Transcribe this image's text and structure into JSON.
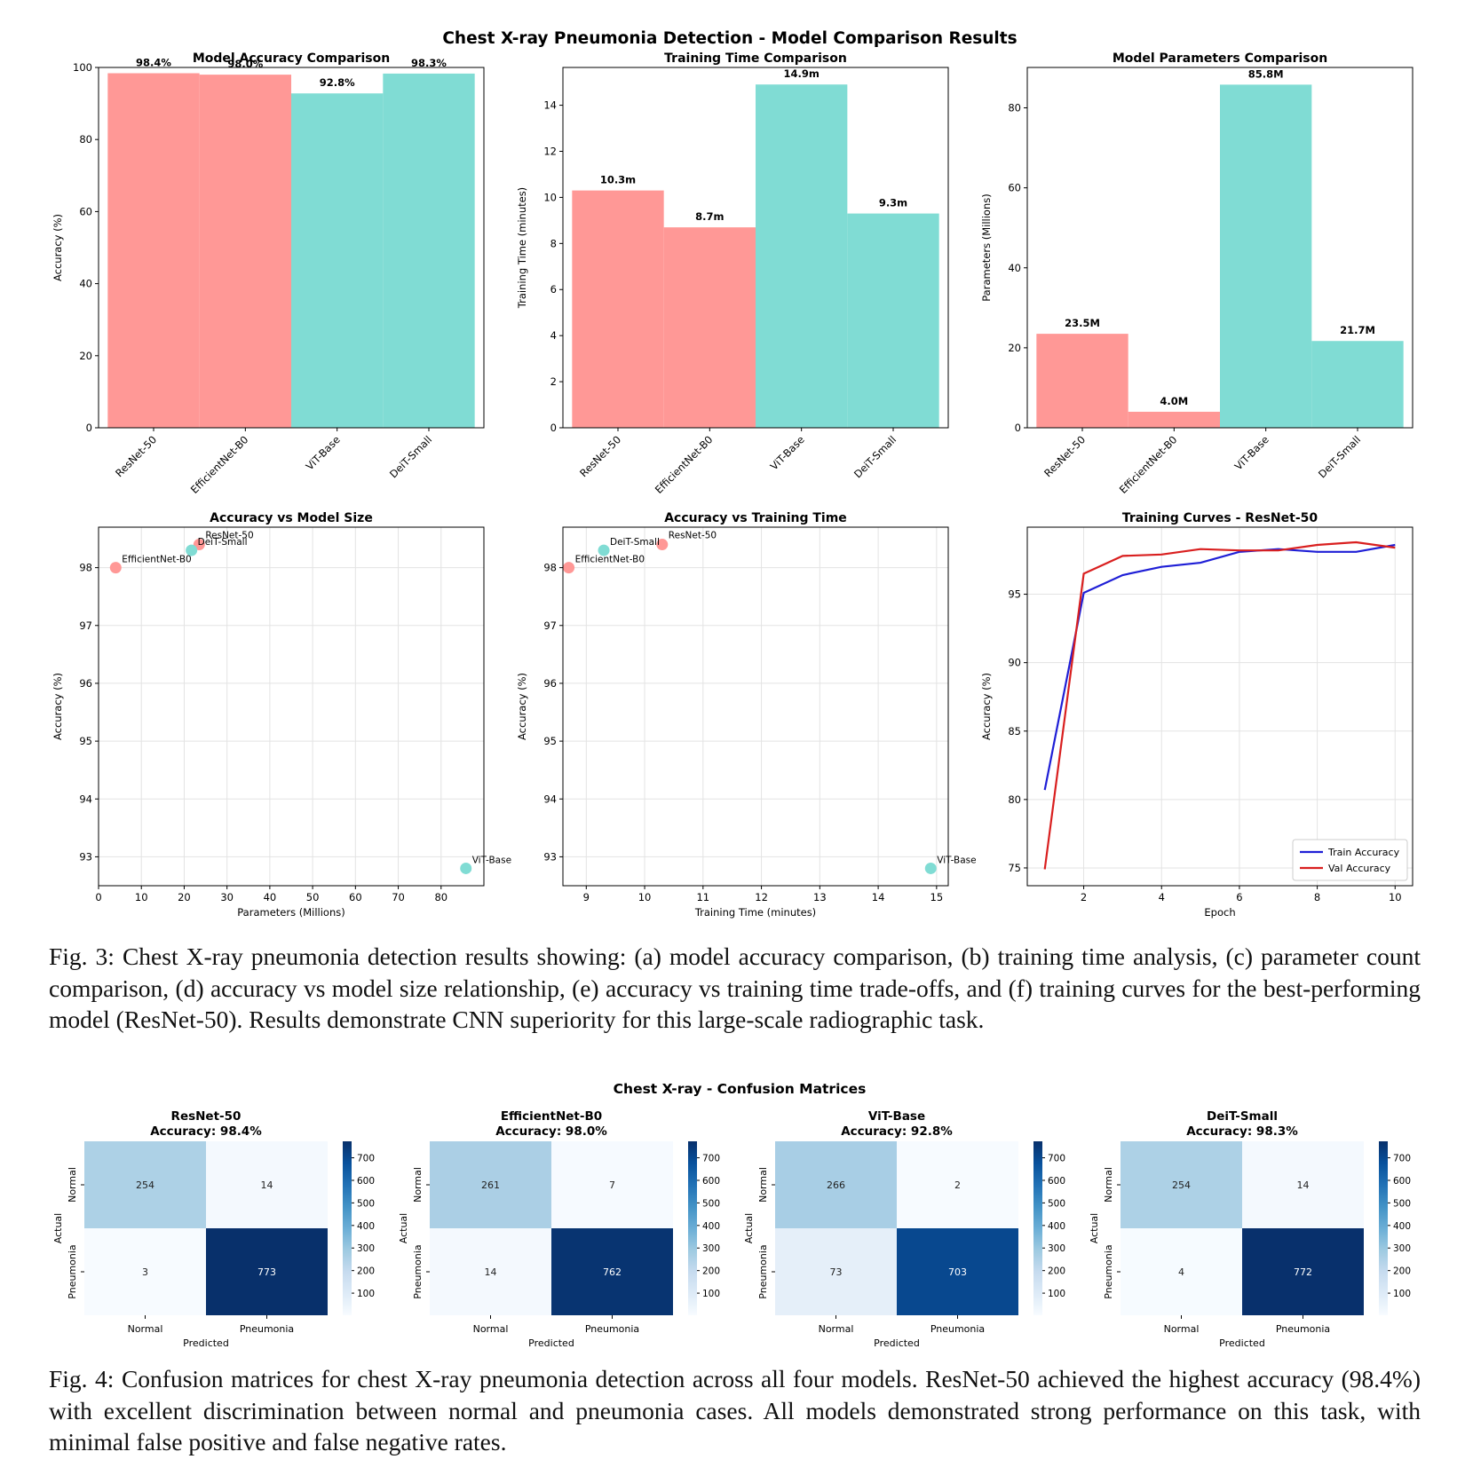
{
  "figure3": {
    "suptitle": "Chest X-ray Pneumonia Detection - Model Comparison Results",
    "caption": "Fig. 3: Chest X-ray pneumonia detection results showing: (a) model accuracy comparison, (b) training time analysis, (c) parameter count comparison, (d) accuracy vs model size relationship, (e) accuracy vs training time trade-offs, and (f) training curves for the best-performing model (ResNet-50). Results demonstrate CNN superiority for this large-scale radiographic task."
  },
  "figure4": {
    "suptitle": "Chest X-ray - Confusion Matrices",
    "caption": "Fig. 4: Confusion matrices for chest X-ray pneumonia detection across all four models. ResNet-50 achieved the highest accuracy (98.4%) with excellent discrimination between normal and pneumonia cases. All models demonstrated strong performance on this task, with minimal false positive and false negative rates."
  },
  "colors": {
    "cnn": "#ff9896",
    "vit": "#80dcd4",
    "train": "#1f1fd6",
    "val": "#d91f1f"
  },
  "chart_data": [
    {
      "type": "bar",
      "title": "Model Accuracy Comparison",
      "ylabel": "Accuracy (%)",
      "categories": [
        "ResNet-50",
        "EfficientNet-B0",
        "ViT-Base",
        "DeiT-Small"
      ],
      "values": [
        98.4,
        98.0,
        92.8,
        98.3
      ],
      "labels": [
        "98.4%",
        "98.0%",
        "92.8%",
        "98.3%"
      ],
      "bar_colors": [
        "#ff9896",
        "#ff9896",
        "#80dcd4",
        "#80dcd4"
      ],
      "ylim": [
        0,
        100
      ],
      "yticks": [
        0,
        20,
        40,
        60,
        80,
        100
      ]
    },
    {
      "type": "bar",
      "title": "Training Time Comparison",
      "ylabel": "Training Time (minutes)",
      "categories": [
        "ResNet-50",
        "EfficientNet-B0",
        "ViT-Base",
        "DeiT-Small"
      ],
      "values": [
        10.3,
        8.7,
        14.9,
        9.3
      ],
      "labels": [
        "10.3m",
        "8.7m",
        "14.9m",
        "9.3m"
      ],
      "bar_colors": [
        "#ff9896",
        "#ff9896",
        "#80dcd4",
        "#80dcd4"
      ],
      "ylim": [
        0,
        15.64
      ],
      "yticks": [
        0,
        2,
        4,
        6,
        8,
        10,
        12,
        14
      ]
    },
    {
      "type": "bar",
      "title": "Model Parameters Comparison",
      "ylabel": "Parameters (Millions)",
      "categories": [
        "ResNet-50",
        "EfficientNet-B0",
        "ViT-Base",
        "DeiT-Small"
      ],
      "values": [
        23.5,
        4.0,
        85.8,
        21.7
      ],
      "labels": [
        "23.5M",
        "4.0M",
        "85.8M",
        "21.7M"
      ],
      "bar_colors": [
        "#ff9896",
        "#ff9896",
        "#80dcd4",
        "#80dcd4"
      ],
      "ylim": [
        0,
        90.1
      ],
      "yticks": [
        0,
        20,
        40,
        60,
        80
      ]
    },
    {
      "type": "scatter",
      "title": "Accuracy vs Model Size",
      "xlabel": "Parameters (Millions)",
      "ylabel": "Accuracy (%)",
      "points": [
        {
          "label": "ResNet-50",
          "x": 23.5,
          "y": 98.4,
          "color": "#ff9896"
        },
        {
          "label": "EfficientNet-B0",
          "x": 4.0,
          "y": 98.0,
          "color": "#ff9896"
        },
        {
          "label": "ViT-Base",
          "x": 85.8,
          "y": 92.8,
          "color": "#80dcd4"
        },
        {
          "label": "DeiT-Small",
          "x": 21.7,
          "y": 98.3,
          "color": "#80dcd4"
        }
      ],
      "xlim": [
        0,
        90
      ],
      "ylim": [
        92.5,
        98.7
      ],
      "xticks": [
        0,
        10,
        20,
        30,
        40,
        50,
        60,
        70,
        80
      ],
      "yticks": [
        93,
        94,
        95,
        96,
        97,
        98
      ],
      "grid": true
    },
    {
      "type": "scatter",
      "title": "Accuracy vs Training Time",
      "xlabel": "Training Time (minutes)",
      "ylabel": "Accuracy (%)",
      "points": [
        {
          "label": "ResNet-50",
          "x": 10.3,
          "y": 98.4,
          "color": "#ff9896"
        },
        {
          "label": "EfficientNet-B0",
          "x": 8.7,
          "y": 98.0,
          "color": "#ff9896"
        },
        {
          "label": "ViT-Base",
          "x": 14.9,
          "y": 92.8,
          "color": "#80dcd4"
        },
        {
          "label": "DeiT-Small",
          "x": 9.3,
          "y": 98.3,
          "color": "#80dcd4"
        }
      ],
      "xlim": [
        8.6,
        15.2
      ],
      "ylim": [
        92.5,
        98.7
      ],
      "xticks": [
        9,
        10,
        11,
        12,
        13,
        14,
        15
      ],
      "yticks": [
        93,
        94,
        95,
        96,
        97,
        98
      ],
      "grid": true
    },
    {
      "type": "line",
      "title": "Training Curves - ResNet-50",
      "xlabel": "Epoch",
      "ylabel": "Accuracy (%)",
      "x": [
        1,
        2,
        3,
        4,
        5,
        6,
        7,
        8,
        9,
        10
      ],
      "series": [
        {
          "name": "Train Accuracy",
          "color": "#1f1fd6",
          "values": [
            80.7,
            95.1,
            96.4,
            97.0,
            97.3,
            98.1,
            98.3,
            98.1,
            98.1,
            98.6
          ]
        },
        {
          "name": "Val Accuracy",
          "color": "#d91f1f",
          "values": [
            74.9,
            96.5,
            97.8,
            97.9,
            98.3,
            98.2,
            98.2,
            98.6,
            98.8,
            98.4
          ]
        }
      ],
      "xlim": [
        0.55,
        10.45
      ],
      "ylim": [
        73.7,
        99.9
      ],
      "xticks": [
        2,
        4,
        6,
        8,
        10
      ],
      "yticks": [
        75,
        80,
        85,
        90,
        95
      ],
      "grid": true,
      "legend": "lower-right"
    },
    {
      "type": "heatmap",
      "title": "ResNet-50",
      "subtitle": "Accuracy: 98.4%",
      "xlabel": "Predicted",
      "ylabel": "Actual",
      "rows": [
        "Normal",
        "Pneumonia"
      ],
      "cols": [
        "Normal",
        "Pneumonia"
      ],
      "values": [
        [
          254,
          14
        ],
        [
          3,
          773
        ]
      ],
      "colorbar_ticks": [
        100,
        200,
        300,
        400,
        500,
        600,
        700
      ]
    },
    {
      "type": "heatmap",
      "title": "EfficientNet-B0",
      "subtitle": "Accuracy: 98.0%",
      "xlabel": "Predicted",
      "ylabel": "Actual",
      "rows": [
        "Normal",
        "Pneumonia"
      ],
      "cols": [
        "Normal",
        "Pneumonia"
      ],
      "values": [
        [
          261,
          7
        ],
        [
          14,
          762
        ]
      ],
      "colorbar_ticks": [
        100,
        200,
        300,
        400,
        500,
        600,
        700
      ]
    },
    {
      "type": "heatmap",
      "title": "ViT-Base",
      "subtitle": "Accuracy: 92.8%",
      "xlabel": "Predicted",
      "ylabel": "Actual",
      "rows": [
        "Normal",
        "Pneumonia"
      ],
      "cols": [
        "Normal",
        "Pneumonia"
      ],
      "values": [
        [
          266,
          2
        ],
        [
          73,
          703
        ]
      ],
      "colorbar_ticks": [
        100,
        200,
        300,
        400,
        500,
        600,
        700
      ]
    },
    {
      "type": "heatmap",
      "title": "DeiT-Small",
      "subtitle": "Accuracy: 98.3%",
      "xlabel": "Predicted",
      "ylabel": "Actual",
      "rows": [
        "Normal",
        "Pneumonia"
      ],
      "cols": [
        "Normal",
        "Pneumonia"
      ],
      "values": [
        [
          254,
          14
        ],
        [
          4,
          772
        ]
      ],
      "colorbar_ticks": [
        100,
        200,
        300,
        400,
        500,
        600,
        700
      ]
    }
  ]
}
